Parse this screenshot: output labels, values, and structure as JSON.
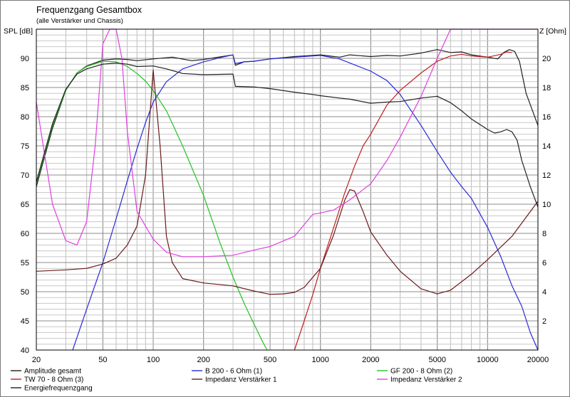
{
  "chart_data": {
    "type": "line",
    "title": "Frequenzgang Gesamtbox",
    "subtitle": "(alle Verstärker und Chassis)",
    "ylabel_left": "SPL [dB]",
    "ylabel_right": "Z [Ohm]",
    "xscale": "log",
    "xlim": [
      20,
      20000
    ],
    "ylim_left": [
      40,
      95
    ],
    "ylim_right": [
      0,
      22
    ],
    "grid": true,
    "legend_position": "bottom",
    "x_ticks": [
      20,
      50,
      100,
      200,
      500,
      1000,
      2000,
      5000,
      10000,
      20000
    ],
    "x_tick_labels": [
      "20",
      "50",
      "100",
      "200",
      "500",
      "1000",
      "2000",
      "5000",
      "10000",
      "20000"
    ],
    "y_ticks_left": [
      40,
      45,
      50,
      55,
      60,
      65,
      70,
      75,
      80,
      85,
      90
    ],
    "y_ticks_right": [
      2,
      4,
      6,
      8,
      10,
      12,
      14,
      16,
      18,
      20
    ],
    "series": [
      {
        "name": "Amplitude gesamt",
        "color": "#202020",
        "axis": "left",
        "points": [
          [
            20,
            68
          ],
          [
            25,
            78
          ],
          [
            30,
            84.5
          ],
          [
            35,
            87.5
          ],
          [
            40,
            88.7
          ],
          [
            50,
            89.7
          ],
          [
            60,
            89.9
          ],
          [
            70,
            89.8
          ],
          [
            80,
            89.6
          ],
          [
            100,
            89.9
          ],
          [
            130,
            90.2
          ],
          [
            170,
            89.6
          ],
          [
            200,
            89.8
          ],
          [
            300,
            90.6
          ],
          [
            310,
            88.8
          ],
          [
            350,
            89.4
          ],
          [
            400,
            89.5
          ],
          [
            500,
            89.9
          ],
          [
            700,
            90.3
          ],
          [
            900,
            90.5
          ],
          [
            1000,
            90.6
          ],
          [
            1300,
            90.2
          ],
          [
            1500,
            90.6
          ],
          [
            2000,
            90.3
          ],
          [
            2500,
            90.5
          ],
          [
            3000,
            90.4
          ],
          [
            4000,
            90.9
          ],
          [
            5000,
            91.5
          ],
          [
            6000,
            91
          ],
          [
            7000,
            91.1
          ],
          [
            8000,
            90.6
          ],
          [
            10000,
            90.2
          ],
          [
            11500,
            89.9
          ],
          [
            12500,
            91
          ],
          [
            13500,
            91.5
          ],
          [
            14500,
            91.2
          ],
          [
            15500,
            89.5
          ],
          [
            17000,
            84
          ],
          [
            20000,
            78.5
          ]
        ]
      },
      {
        "name": "B 200 - 6 Ohm (1)",
        "color": "#2a2ad8",
        "axis": "left",
        "points": [
          [
            33,
            40
          ],
          [
            40,
            47
          ],
          [
            50,
            55
          ],
          [
            60,
            62.5
          ],
          [
            70,
            69
          ],
          [
            80,
            74.5
          ],
          [
            90,
            79
          ],
          [
            100,
            82.5
          ],
          [
            120,
            86
          ],
          [
            150,
            88.2
          ],
          [
            200,
            89.4
          ],
          [
            250,
            90.1
          ],
          [
            300,
            90.6
          ],
          [
            310,
            89.1
          ],
          [
            350,
            89.4
          ],
          [
            400,
            89.5
          ],
          [
            500,
            89.9
          ],
          [
            700,
            90.2
          ],
          [
            1000,
            90.5
          ],
          [
            1300,
            89.9
          ],
          [
            1500,
            89.2
          ],
          [
            2000,
            87.8
          ],
          [
            2500,
            86.2
          ],
          [
            3000,
            83.8
          ],
          [
            4000,
            78.5
          ],
          [
            5000,
            74
          ],
          [
            6000,
            70.5
          ],
          [
            7000,
            68
          ],
          [
            8000,
            66
          ],
          [
            10000,
            61
          ],
          [
            12000,
            56
          ],
          [
            14000,
            51
          ],
          [
            16000,
            47.5
          ],
          [
            18000,
            43
          ],
          [
            20000,
            40
          ]
        ]
      },
      {
        "name": "GF 200 - 8 Ohm (2)",
        "color": "#22c322",
        "axis": "left",
        "points": [
          [
            20,
            68.5
          ],
          [
            25,
            78.5
          ],
          [
            30,
            84.5
          ],
          [
            35,
            87.5
          ],
          [
            40,
            88.6
          ],
          [
            50,
            89.5
          ],
          [
            60,
            89.4
          ],
          [
            70,
            88.6
          ],
          [
            80,
            87.4
          ],
          [
            90,
            86.1
          ],
          [
            100,
            84.5
          ],
          [
            120,
            81
          ],
          [
            150,
            75
          ],
          [
            200,
            66.5
          ],
          [
            250,
            58.5
          ],
          [
            300,
            52.5
          ],
          [
            350,
            48
          ],
          [
            400,
            44.5
          ],
          [
            450,
            41.5
          ],
          [
            480,
            40
          ]
        ]
      },
      {
        "name": "TW 70 - 8 Ohm (3)",
        "color": "#c02020",
        "axis": "left",
        "points": [
          [
            700,
            40
          ],
          [
            800,
            45
          ],
          [
            900,
            49.5
          ],
          [
            1000,
            54
          ],
          [
            1200,
            61
          ],
          [
            1400,
            67
          ],
          [
            1600,
            71.5
          ],
          [
            1800,
            75
          ],
          [
            2000,
            77
          ],
          [
            2500,
            82
          ],
          [
            3000,
            84.5
          ],
          [
            4000,
            87.5
          ],
          [
            5000,
            89.5
          ],
          [
            6000,
            90.4
          ],
          [
            7000,
            90.7
          ],
          [
            8000,
            90.4
          ],
          [
            10000,
            90.2
          ],
          [
            12000,
            90.7
          ],
          [
            13000,
            91.1
          ],
          [
            14000,
            91
          ]
        ]
      },
      {
        "name": "Impedanz Verstärker 1",
        "color": "#6b1a1a",
        "axis": "right",
        "points": [
          [
            20,
            5.4
          ],
          [
            30,
            5.5
          ],
          [
            40,
            5.6
          ],
          [
            50,
            5.9
          ],
          [
            60,
            6.3
          ],
          [
            70,
            7.2
          ],
          [
            80,
            8.5
          ],
          [
            90,
            12
          ],
          [
            100,
            19.2
          ],
          [
            110,
            14
          ],
          [
            120,
            7.8
          ],
          [
            130,
            6
          ],
          [
            150,
            4.9
          ],
          [
            200,
            4.6
          ],
          [
            300,
            4.4
          ],
          [
            400,
            4.05
          ],
          [
            500,
            3.82
          ],
          [
            600,
            3.85
          ],
          [
            700,
            3.95
          ],
          [
            800,
            4.3
          ],
          [
            1000,
            5.6
          ],
          [
            1200,
            7.9
          ],
          [
            1400,
            10.3
          ],
          [
            1500,
            11
          ],
          [
            1600,
            10.9
          ],
          [
            1800,
            9.5
          ],
          [
            2000,
            8.1
          ],
          [
            2500,
            6.5
          ],
          [
            3000,
            5.4
          ],
          [
            4000,
            4.2
          ],
          [
            5000,
            3.85
          ],
          [
            6000,
            4.1
          ],
          [
            8000,
            5.2
          ],
          [
            10000,
            6.2
          ],
          [
            14000,
            7.8
          ],
          [
            20000,
            10.2
          ]
        ]
      },
      {
        "name": "Impedanz Verstärker 2",
        "color": "#e040e0",
        "axis": "right",
        "points": [
          [
            20,
            17
          ],
          [
            25,
            10
          ],
          [
            30,
            7.5
          ],
          [
            35,
            7.2
          ],
          [
            40,
            8.8
          ],
          [
            45,
            14
          ],
          [
            50,
            21
          ],
          [
            55,
            22
          ],
          [
            60,
            22
          ],
          [
            65,
            20
          ],
          [
            70,
            15
          ],
          [
            80,
            9.5
          ],
          [
            100,
            7.6
          ],
          [
            120,
            6.7
          ],
          [
            150,
            6.4
          ],
          [
            200,
            6.4
          ],
          [
            300,
            6.5
          ],
          [
            400,
            6.85
          ],
          [
            500,
            7.1
          ],
          [
            700,
            7.8
          ],
          [
            900,
            9.3
          ],
          [
            1000,
            9.4
          ],
          [
            1200,
            9.6
          ],
          [
            1500,
            10.3
          ],
          [
            2000,
            11.4
          ],
          [
            2500,
            13
          ],
          [
            3000,
            14.6
          ],
          [
            4000,
            17.4
          ],
          [
            5000,
            20
          ],
          [
            6000,
            22
          ],
          [
            20000,
            22
          ]
        ]
      },
      {
        "name": "Energiefrequenzgang",
        "color": "#202020",
        "axis": "left",
        "points": [
          [
            20,
            68.8
          ],
          [
            25,
            78.8
          ],
          [
            30,
            84.7
          ],
          [
            35,
            87.3
          ],
          [
            40,
            88.2
          ],
          [
            50,
            89
          ],
          [
            60,
            89.2
          ],
          [
            70,
            89
          ],
          [
            80,
            88.6
          ],
          [
            100,
            88.7
          ],
          [
            120,
            88.2
          ],
          [
            150,
            87.4
          ],
          [
            200,
            87.2
          ],
          [
            300,
            87.3
          ],
          [
            310,
            85.2
          ],
          [
            400,
            85.1
          ],
          [
            500,
            84.8
          ],
          [
            700,
            84.2
          ],
          [
            900,
            83.8
          ],
          [
            1000,
            83.6
          ],
          [
            1300,
            83.2
          ],
          [
            1500,
            83
          ],
          [
            2000,
            82.3
          ],
          [
            2500,
            82.5
          ],
          [
            3000,
            82.6
          ],
          [
            4000,
            83.2
          ],
          [
            5000,
            83.5
          ],
          [
            6000,
            82.4
          ],
          [
            7000,
            81
          ],
          [
            8000,
            79.6
          ],
          [
            10000,
            77.8
          ],
          [
            11000,
            77.2
          ],
          [
            12000,
            77.4
          ],
          [
            13000,
            77.8
          ],
          [
            14000,
            77.4
          ],
          [
            15000,
            76
          ],
          [
            16000,
            72.5
          ],
          [
            18000,
            68
          ],
          [
            20000,
            64.5
          ]
        ]
      }
    ]
  }
}
